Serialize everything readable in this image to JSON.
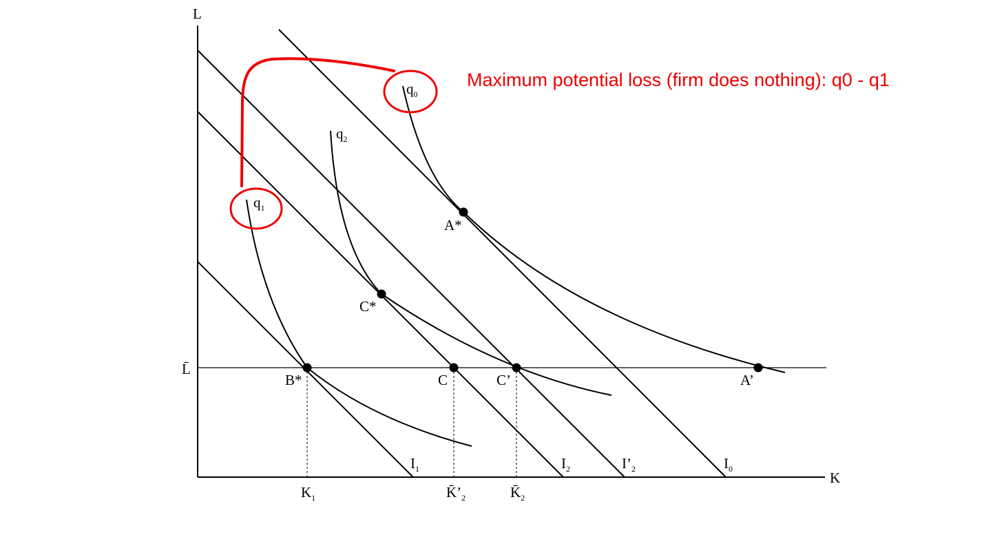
{
  "axes": {
    "y_label": "L",
    "x_label": "K",
    "l_bar_label": "L̄"
  },
  "quantities": {
    "q0": {
      "base": "q",
      "sub": "0"
    },
    "q1": {
      "base": "q",
      "sub": "1"
    },
    "q2": {
      "base": "q",
      "sub": "2"
    }
  },
  "points": {
    "a_star": "A*",
    "a_prime": "A’",
    "b_star": "B*",
    "c_star": "C*",
    "c": "C",
    "c_prime": "C’"
  },
  "isocosts": {
    "i1": {
      "base": "I",
      "sub": "1"
    },
    "i2": {
      "base": "I",
      "sub": "2"
    },
    "i2_prime": {
      "base": "I’",
      "sub": "2"
    },
    "i0": {
      "base": "I",
      "sub": "0"
    }
  },
  "x_ticks": {
    "k1": {
      "base": "K",
      "sub": "1"
    },
    "k2_prime": {
      "base": "K̄’",
      "sub": "2"
    },
    "k2": {
      "base": "K̄",
      "sub": "2"
    }
  },
  "annotation": {
    "text": "Maximum potential loss (firm does nothing): q0 - q1",
    "color": "#ee0000"
  }
}
